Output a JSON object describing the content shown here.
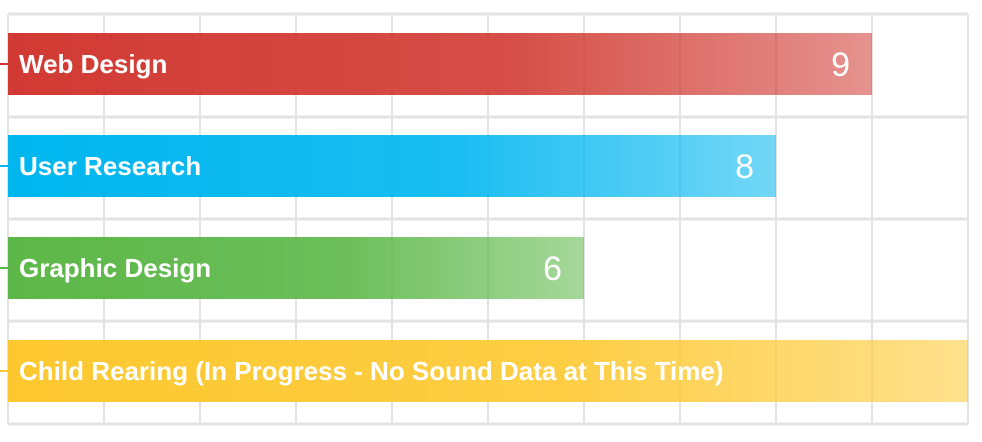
{
  "chart_data": {
    "type": "bar",
    "orientation": "horizontal",
    "xlim": [
      0,
      10
    ],
    "grid": true,
    "categories": [
      "Web Design",
      "User Research",
      "Graphic Design",
      "Child Rearing (In Progress - No Sound Data at This Time)"
    ],
    "values": [
      9,
      8,
      6,
      10
    ],
    "value_labels": [
      "9",
      "8",
      "6",
      ""
    ],
    "colors": [
      "#d13a33",
      "#00b6ef",
      "#5cb748",
      "#fdc82f"
    ]
  }
}
